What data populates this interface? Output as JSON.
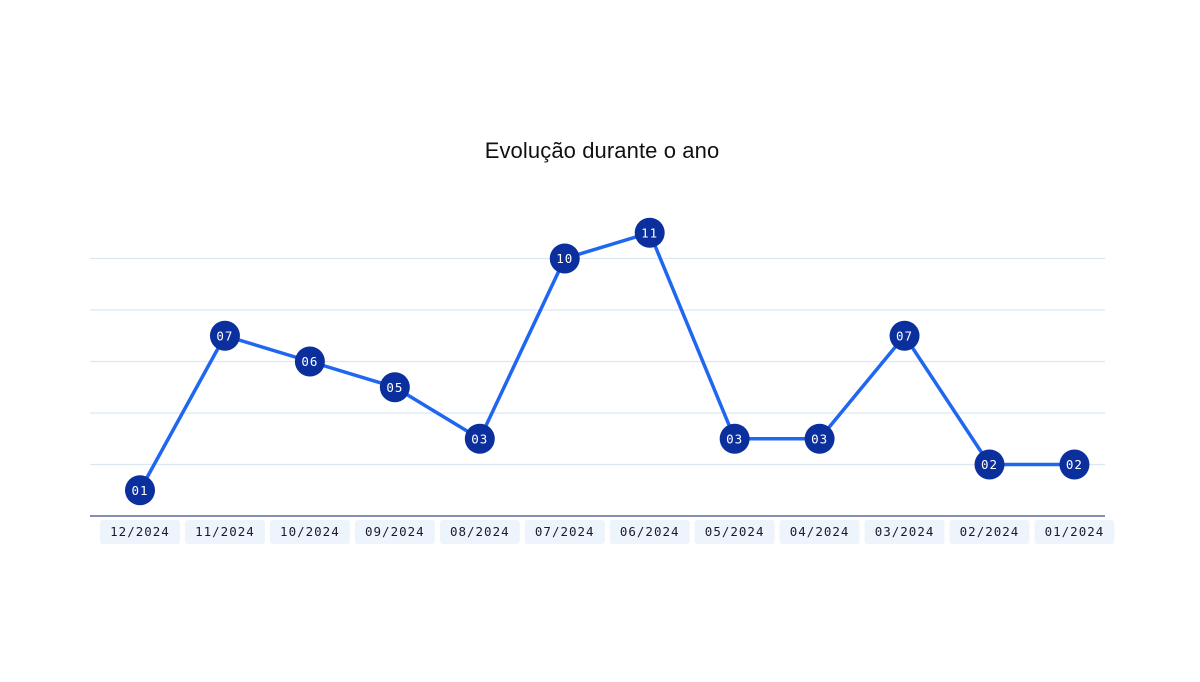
{
  "chart_data": {
    "type": "line",
    "title": "Evolução durante o ano",
    "xlabel": "",
    "ylabel": "",
    "categories": [
      "12/2024",
      "11/2024",
      "10/2024",
      "09/2024",
      "08/2024",
      "07/2024",
      "06/2024",
      "05/2024",
      "04/2024",
      "03/2024",
      "02/2024",
      "01/2024"
    ],
    "values": [
      1,
      7,
      6,
      5,
      3,
      10,
      11,
      3,
      3,
      7,
      2,
      2
    ],
    "data_labels": [
      "01",
      "07",
      "06",
      "05",
      "03",
      "10",
      "11",
      "03",
      "03",
      "07",
      "02",
      "02"
    ],
    "ylim": [
      0,
      10
    ],
    "grid": true,
    "colors": {
      "line": "#1f66f0",
      "marker": "#0b2f9c",
      "grid": "#dbe6f3",
      "axis": "#5b6b9a",
      "tick_bg": "#eef4fc"
    }
  }
}
